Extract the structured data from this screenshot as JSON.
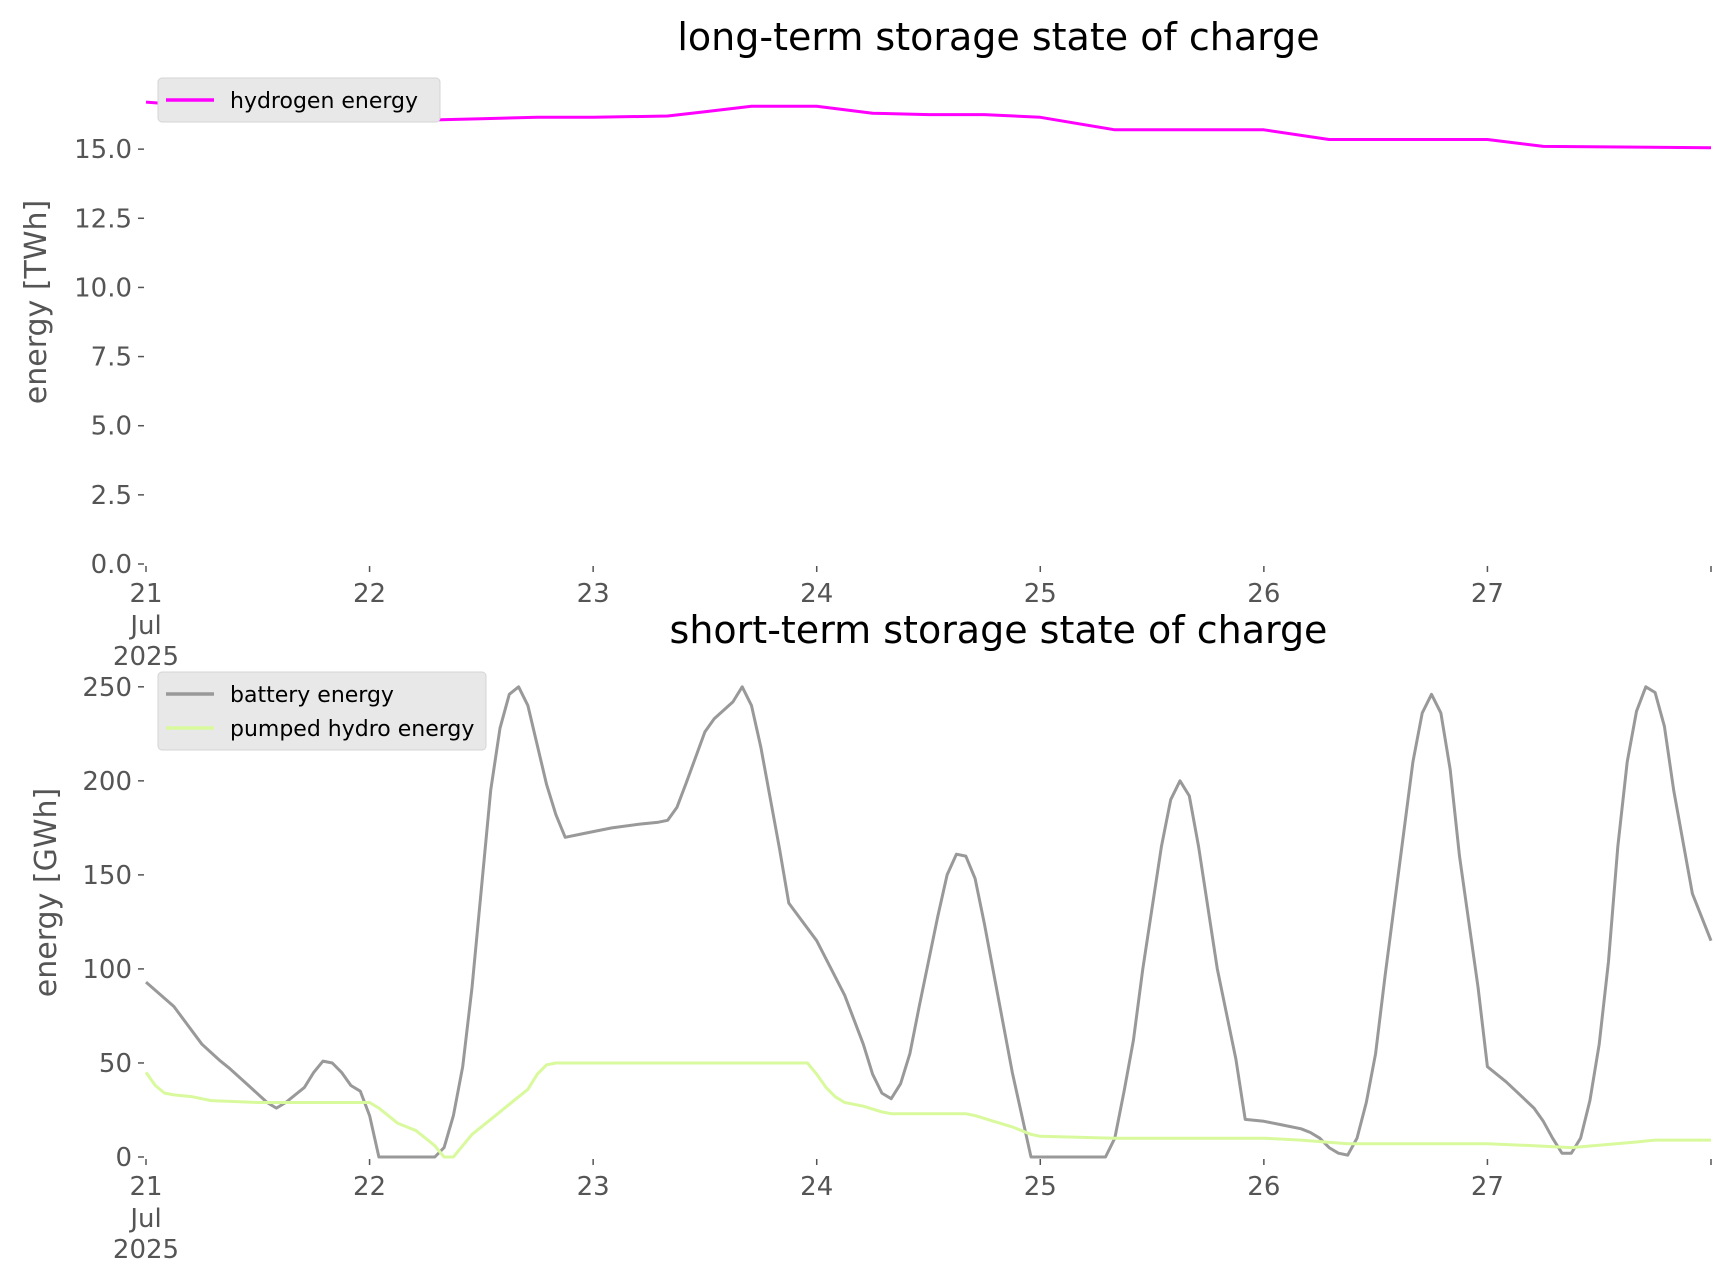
{
  "chart_data": [
    {
      "type": "line",
      "title": "long-term storage state of charge",
      "ylabel": "energy [TWh]",
      "ylim": [
        0,
        17.5
      ],
      "yticks": [
        "0.0",
        "2.5",
        "5.0",
        "7.5",
        "10.0",
        "12.5",
        "15.0"
      ],
      "xlim": [
        "2025-07-21 00:00",
        "2025-07-28 00:00"
      ],
      "xticks": [
        "21",
        "22",
        "23",
        "24",
        "25",
        "26",
        "27"
      ],
      "xtick_sub": [
        "Jul",
        "2025"
      ],
      "legend": "top-left",
      "grid": false,
      "series": [
        {
          "name": "hydrogen energy",
          "color": "#ff00ff",
          "points": [
            [
              "2025-07-21 00:00",
              16.7
            ],
            [
              "2025-07-21 06:00",
              16.55
            ],
            [
              "2025-07-21 12:00",
              16.3
            ],
            [
              "2025-07-21 18:00",
              16.15
            ],
            [
              "2025-07-22 00:00",
              16.1
            ],
            [
              "2025-07-22 06:00",
              16.05
            ],
            [
              "2025-07-22 12:00",
              16.1
            ],
            [
              "2025-07-22 18:00",
              16.15
            ],
            [
              "2025-07-23 00:00",
              16.15
            ],
            [
              "2025-07-23 08:00",
              16.2
            ],
            [
              "2025-07-23 12:00",
              16.35
            ],
            [
              "2025-07-23 17:00",
              16.55
            ],
            [
              "2025-07-24 00:00",
              16.55
            ],
            [
              "2025-07-24 06:00",
              16.3
            ],
            [
              "2025-07-24 12:00",
              16.25
            ],
            [
              "2025-07-24 18:00",
              16.25
            ],
            [
              "2025-07-25 00:00",
              16.15
            ],
            [
              "2025-07-25 08:00",
              15.7
            ],
            [
              "2025-07-25 18:00",
              15.7
            ],
            [
              "2025-07-26 00:00",
              15.7
            ],
            [
              "2025-07-26 07:00",
              15.35
            ],
            [
              "2025-07-26 12:00",
              15.35
            ],
            [
              "2025-07-27 00:00",
              15.35
            ],
            [
              "2025-07-27 06:00",
              15.1
            ],
            [
              "2025-07-28 00:00",
              15.05
            ]
          ]
        }
      ]
    },
    {
      "type": "line",
      "title": "short-term storage state of charge",
      "ylabel": "energy [GWh]",
      "ylim": [
        0,
        260
      ],
      "yticks": [
        "0",
        "50",
        "100",
        "150",
        "200",
        "250"
      ],
      "xlim": [
        "2025-07-21 00:00",
        "2025-07-28 00:00"
      ],
      "xticks": [
        "21",
        "22",
        "23",
        "24",
        "25",
        "26",
        "27"
      ],
      "xtick_sub": [
        "Jul",
        "2025"
      ],
      "legend": "top-left",
      "grid": false,
      "series": [
        {
          "name": "battery energy",
          "color": "#999999",
          "points": [
            [
              "2025-07-21 00:00",
              93
            ],
            [
              "2025-07-21 03:00",
              80
            ],
            [
              "2025-07-21 06:00",
              60
            ],
            [
              "2025-07-21 08:00",
              51
            ],
            [
              "2025-07-21 09:00",
              47
            ],
            [
              "2025-07-21 11:00",
              38
            ],
            [
              "2025-07-21 13:00",
              29
            ],
            [
              "2025-07-21 14:00",
              26
            ],
            [
              "2025-07-21 15:00",
              29
            ],
            [
              "2025-07-21 17:00",
              37
            ],
            [
              "2025-07-21 18:00",
              45
            ],
            [
              "2025-07-21 19:00",
              51
            ],
            [
              "2025-07-21 20:00",
              50
            ],
            [
              "2025-07-21 21:00",
              45
            ],
            [
              "2025-07-21 22:00",
              38
            ],
            [
              "2025-07-21 23:00",
              35
            ],
            [
              "2025-07-22 00:00",
              22
            ],
            [
              "2025-07-22 01:00",
              0
            ],
            [
              "2025-07-22 07:00",
              0
            ],
            [
              "2025-07-22 08:00",
              5
            ],
            [
              "2025-07-22 09:00",
              22
            ],
            [
              "2025-07-22 10:00",
              48
            ],
            [
              "2025-07-22 11:00",
              90
            ],
            [
              "2025-07-22 13:00",
              195
            ],
            [
              "2025-07-22 14:00",
              228
            ],
            [
              "2025-07-22 15:00",
              246
            ],
            [
              "2025-07-22 16:00",
              250
            ],
            [
              "2025-07-22 17:00",
              240
            ],
            [
              "2025-07-22 19:00",
              198
            ],
            [
              "2025-07-22 20:00",
              182
            ],
            [
              "2025-07-22 21:00",
              170
            ],
            [
              "2025-07-22 23:00",
              172
            ],
            [
              "2025-07-23 02:00",
              175
            ],
            [
              "2025-07-23 05:00",
              177
            ],
            [
              "2025-07-23 07:00",
              178
            ],
            [
              "2025-07-23 08:00",
              179
            ],
            [
              "2025-07-23 09:00",
              186
            ],
            [
              "2025-07-23 10:00",
              199
            ],
            [
              "2025-07-23 12:00",
              226
            ],
            [
              "2025-07-23 13:00",
              233
            ],
            [
              "2025-07-23 15:00",
              242
            ],
            [
              "2025-07-23 16:00",
              250
            ],
            [
              "2025-07-23 17:00",
              240
            ],
            [
              "2025-07-23 18:00",
              218
            ],
            [
              "2025-07-23 20:00",
              164
            ],
            [
              "2025-07-23 21:00",
              135
            ],
            [
              "2025-07-24 00:00",
              115
            ],
            [
              "2025-07-24 03:00",
              86
            ],
            [
              "2025-07-24 05:00",
              60
            ],
            [
              "2025-07-24 06:00",
              44
            ],
            [
              "2025-07-24 07:00",
              34
            ],
            [
              "2025-07-24 08:00",
              31
            ],
            [
              "2025-07-24 09:00",
              39
            ],
            [
              "2025-07-24 10:00",
              55
            ],
            [
              "2025-07-24 11:00",
              80
            ],
            [
              "2025-07-24 13:00",
              128
            ],
            [
              "2025-07-24 14:00",
              150
            ],
            [
              "2025-07-24 15:00",
              161
            ],
            [
              "2025-07-24 16:00",
              160
            ],
            [
              "2025-07-24 17:00",
              148
            ],
            [
              "2025-07-24 18:00",
              124
            ],
            [
              "2025-07-24 21:00",
              45
            ],
            [
              "2025-07-24 23:00",
              0
            ],
            [
              "2025-07-25 07:00",
              0
            ],
            [
              "2025-07-25 08:00",
              10
            ],
            [
              "2025-07-25 09:00",
              35
            ],
            [
              "2025-07-25 10:00",
              62
            ],
            [
              "2025-07-25 11:00",
              100
            ],
            [
              "2025-07-25 13:00",
              165
            ],
            [
              "2025-07-25 14:00",
              190
            ],
            [
              "2025-07-25 15:00",
              200
            ],
            [
              "2025-07-25 16:00",
              192
            ],
            [
              "2025-07-25 17:00",
              165
            ],
            [
              "2025-07-25 19:00",
              100
            ],
            [
              "2025-07-25 21:00",
              52
            ],
            [
              "2025-07-25 22:00",
              20
            ],
            [
              "2025-07-26 00:00",
              19
            ],
            [
              "2025-07-26 02:00",
              17
            ],
            [
              "2025-07-26 04:00",
              15
            ],
            [
              "2025-07-26 05:00",
              13
            ],
            [
              "2025-07-26 06:00",
              10
            ],
            [
              "2025-07-26 07:00",
              5
            ],
            [
              "2025-07-26 08:00",
              2
            ],
            [
              "2025-07-26 09:00",
              1
            ],
            [
              "2025-07-26 10:00",
              10
            ],
            [
              "2025-07-26 11:00",
              29
            ],
            [
              "2025-07-26 12:00",
              55
            ],
            [
              "2025-07-26 13:00",
              96
            ],
            [
              "2025-07-26 15:00",
              172
            ],
            [
              "2025-07-26 16:00",
              210
            ],
            [
              "2025-07-26 17:00",
              236
            ],
            [
              "2025-07-26 18:00",
              246
            ],
            [
              "2025-07-26 19:00",
              236
            ],
            [
              "2025-07-26 20:00",
              206
            ],
            [
              "2025-07-26 21:00",
              160
            ],
            [
              "2025-07-26 23:00",
              90
            ],
            [
              "2025-07-27 00:00",
              48
            ],
            [
              "2025-07-27 02:00",
              40
            ],
            [
              "2025-07-27 05:00",
              26
            ],
            [
              "2025-07-27 06:00",
              19
            ],
            [
              "2025-07-27 07:00",
              10
            ],
            [
              "2025-07-27 08:00",
              2
            ],
            [
              "2025-07-27 09:00",
              2
            ],
            [
              "2025-07-27 10:00",
              10
            ],
            [
              "2025-07-27 11:00",
              30
            ],
            [
              "2025-07-27 12:00",
              60
            ],
            [
              "2025-07-27 13:00",
              104
            ],
            [
              "2025-07-27 14:00",
              165
            ],
            [
              "2025-07-27 15:00",
              210
            ],
            [
              "2025-07-27 16:00",
              237
            ],
            [
              "2025-07-27 17:00",
              250
            ],
            [
              "2025-07-27 18:00",
              247
            ],
            [
              "2025-07-27 19:00",
              229
            ],
            [
              "2025-07-27 20:00",
              195
            ],
            [
              "2025-07-27 22:00",
              140
            ],
            [
              "2025-07-28 00:00",
              115
            ]
          ]
        },
        {
          "name": "pumped hydro energy",
          "color": "#d9f99d",
          "points": [
            [
              "2025-07-21 00:00",
              45
            ],
            [
              "2025-07-21 01:00",
              38
            ],
            [
              "2025-07-21 02:00",
              34
            ],
            [
              "2025-07-21 03:00",
              33
            ],
            [
              "2025-07-21 05:00",
              32
            ],
            [
              "2025-07-21 07:00",
              30
            ],
            [
              "2025-07-21 12:00",
              29
            ],
            [
              "2025-07-21 22:00",
              29
            ],
            [
              "2025-07-22 00:00",
              29
            ],
            [
              "2025-07-22 01:00",
              26
            ],
            [
              "2025-07-22 02:00",
              22
            ],
            [
              "2025-07-22 03:00",
              18
            ],
            [
              "2025-07-22 04:00",
              16
            ],
            [
              "2025-07-22 05:00",
              14
            ],
            [
              "2025-07-22 06:00",
              10
            ],
            [
              "2025-07-22 07:00",
              6
            ],
            [
              "2025-07-22 08:00",
              0
            ],
            [
              "2025-07-22 09:00",
              0
            ],
            [
              "2025-07-22 10:00",
              6
            ],
            [
              "2025-07-22 11:00",
              12
            ],
            [
              "2025-07-22 13:00",
              20
            ],
            [
              "2025-07-22 15:00",
              28
            ],
            [
              "2025-07-22 17:00",
              36
            ],
            [
              "2025-07-22 18:00",
              44
            ],
            [
              "2025-07-22 19:00",
              49
            ],
            [
              "2025-07-22 20:00",
              50
            ],
            [
              "2025-07-23 23:00",
              50
            ],
            [
              "2025-07-24 00:00",
              44
            ],
            [
              "2025-07-24 01:00",
              37
            ],
            [
              "2025-07-24 02:00",
              32
            ],
            [
              "2025-07-24 03:00",
              29
            ],
            [
              "2025-07-24 05:00",
              27
            ],
            [
              "2025-07-24 07:00",
              24
            ],
            [
              "2025-07-24 08:00",
              23
            ],
            [
              "2025-07-24 16:00",
              23
            ],
            [
              "2025-07-24 17:00",
              22
            ],
            [
              "2025-07-24 19:00",
              19
            ],
            [
              "2025-07-24 21:00",
              16
            ],
            [
              "2025-07-24 23:00",
              12
            ],
            [
              "2025-07-25 00:00",
              11
            ],
            [
              "2025-07-25 08:00",
              10
            ],
            [
              "2025-07-26 00:00",
              10
            ],
            [
              "2025-07-26 04:00",
              9
            ],
            [
              "2025-07-26 09:00",
              7
            ],
            [
              "2025-07-27 00:00",
              7
            ],
            [
              "2025-07-27 05:00",
              6
            ],
            [
              "2025-07-27 09:00",
              5
            ],
            [
              "2025-07-27 16:00",
              8
            ],
            [
              "2025-07-27 18:00",
              9
            ],
            [
              "2025-07-28 00:00",
              9
            ]
          ]
        }
      ]
    }
  ]
}
